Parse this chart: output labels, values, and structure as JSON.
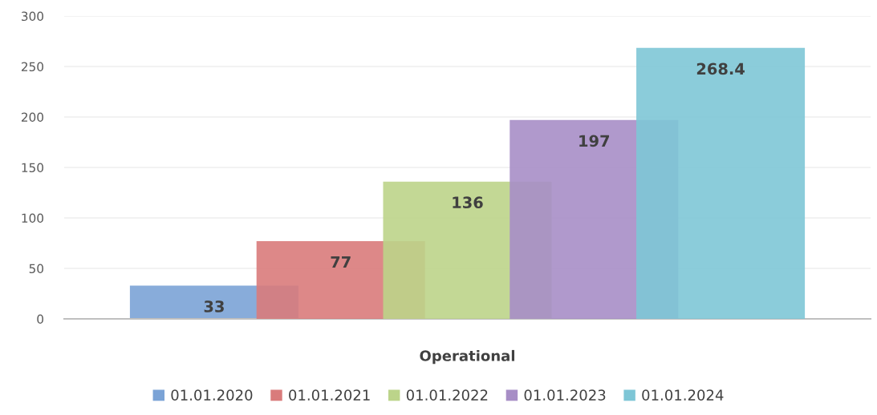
{
  "chart_data": {
    "type": "bar",
    "categories": [
      "Operational"
    ],
    "series": [
      {
        "name": "01.01.2020",
        "color": "#7ba3d6",
        "values": [
          33
        ]
      },
      {
        "name": "01.01.2021",
        "color": "#d97b7b",
        "values": [
          77
        ]
      },
      {
        "name": "01.01.2022",
        "color": "#bcd48a",
        "values": [
          136
        ]
      },
      {
        "name": "01.01.2023",
        "color": "#a78ec6",
        "values": [
          197
        ]
      },
      {
        "name": "01.01.2024",
        "color": "#7ec6d6",
        "values": [
          268.4
        ]
      }
    ],
    "ylim": [
      0,
      300
    ],
    "yticks": [
      0,
      50,
      100,
      150,
      200,
      250,
      300
    ],
    "grid": "y",
    "legend": "bottom",
    "data_labels": true
  }
}
